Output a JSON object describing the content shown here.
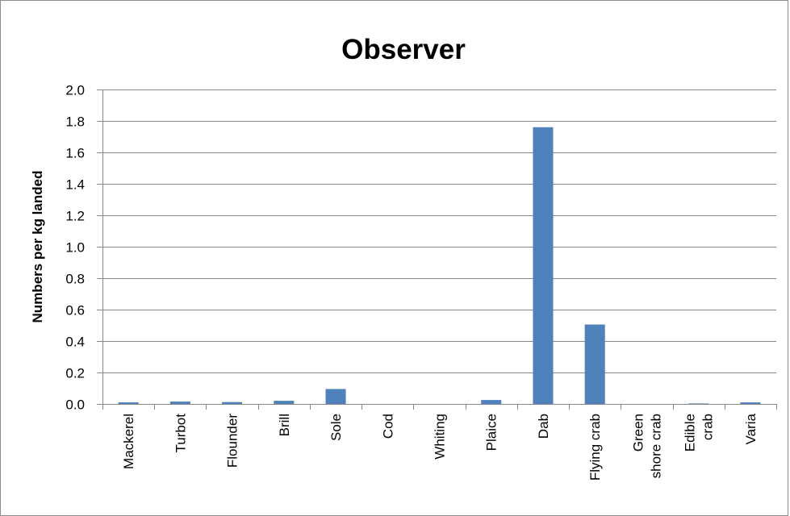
{
  "chart_data": {
    "type": "bar",
    "title": "Observer",
    "xlabel": "",
    "ylabel": "Numbers per kg landed",
    "ylim": [
      0,
      2.0
    ],
    "yticks": [
      "0.0",
      "0.2",
      "0.4",
      "0.6",
      "0.8",
      "1.0",
      "1.2",
      "1.4",
      "1.6",
      "1.8",
      "2.0"
    ],
    "categories": [
      [
        "Mackerel"
      ],
      [
        "Turbot"
      ],
      [
        "Flounder"
      ],
      [
        "Brill"
      ],
      [
        "Sole"
      ],
      [
        "Cod"
      ],
      [
        "Whiting"
      ],
      [
        "Plaice"
      ],
      [
        "Dab"
      ],
      [
        "Flying crab"
      ],
      [
        "Green",
        "shore crab"
      ],
      [
        "Edible",
        "crab"
      ],
      [
        "Varia"
      ]
    ],
    "values": [
      0.01,
      0.015,
      0.012,
      0.02,
      0.095,
      0.0,
      0.0,
      0.025,
      1.76,
      0.505,
      0.0,
      0.003,
      0.01
    ],
    "bar_color": "#4f81bd",
    "grid": true,
    "legend": "none"
  }
}
